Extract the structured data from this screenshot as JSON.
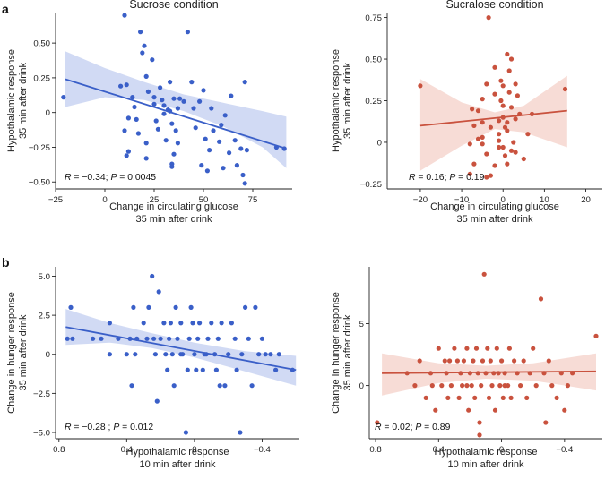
{
  "figure": {
    "panel_letters": [
      "a",
      "b"
    ]
  },
  "chart_data": [
    {
      "type": "scatter",
      "title": "Sucrose condition",
      "xlabel": [
        "Change in circulating glucose",
        "35 min after drink"
      ],
      "ylabel": [
        "Hypothalamic response",
        "35 min after drink"
      ],
      "xlim": [
        -25,
        95
      ],
      "ylim": [
        -0.55,
        0.72
      ],
      "xticks": [
        -25,
        0,
        25,
        50,
        75
      ],
      "xtick_labels": [
        "−25",
        "0",
        "25",
        "50",
        "75"
      ],
      "yticks": [
        -0.5,
        -0.25,
        0,
        0.25,
        0.5
      ],
      "ytick_labels": [
        "−0.50",
        "−0.25",
        "0",
        "0.25",
        "0.50"
      ],
      "color": "#3a5fc8",
      "band_color": "#c9d4f2",
      "stat": {
        "r_label": "R",
        "r_value": " = −0.34; ",
        "p_label": "P",
        "p_value": " = 0.0045"
      },
      "fit": {
        "x": [
          -20,
          92
        ],
        "y": [
          0.24,
          -0.26
        ]
      },
      "band": {
        "x": [
          -20,
          0,
          20,
          40,
          60,
          80,
          92
        ],
        "upper": [
          0.44,
          0.32,
          0.22,
          0.13,
          0.07,
          0.01,
          -0.03
        ],
        "lower": [
          0.04,
          0.11,
          0.09,
          0.01,
          -0.1,
          -0.25,
          -0.4
        ]
      },
      "points": [
        [
          -21,
          0.11
        ],
        [
          8,
          0.19
        ],
        [
          10,
          0.7
        ],
        [
          11,
          0.2
        ],
        [
          12,
          -0.04
        ],
        [
          10,
          -0.13
        ],
        [
          11,
          -0.31
        ],
        [
          12,
          -0.28
        ],
        [
          14,
          0.11
        ],
        [
          15,
          0.04
        ],
        [
          16,
          -0.05
        ],
        [
          17,
          -0.15
        ],
        [
          18,
          0.58
        ],
        [
          19,
          0.43
        ],
        [
          20,
          0.48
        ],
        [
          21,
          0.26
        ],
        [
          21,
          -0.22
        ],
        [
          21,
          -0.33
        ],
        [
          22,
          0.15
        ],
        [
          24,
          0.38
        ],
        [
          25,
          0.11
        ],
        [
          25,
          0.06
        ],
        [
          26,
          -0.06
        ],
        [
          27,
          -0.12
        ],
        [
          28,
          0.18
        ],
        [
          29,
          0.09
        ],
        [
          30,
          0.05
        ],
        [
          30,
          -0.01
        ],
        [
          31,
          -0.2
        ],
        [
          32,
          0.02
        ],
        [
          33,
          0.22
        ],
        [
          33,
          0.01
        ],
        [
          34,
          -0.08
        ],
        [
          34,
          -0.37
        ],
        [
          34,
          -0.39
        ],
        [
          35,
          0.1
        ],
        [
          35,
          -0.3
        ],
        [
          36,
          -0.13
        ],
        [
          37,
          -0.22
        ],
        [
          37,
          0.03
        ],
        [
          38,
          0.1
        ],
        [
          40,
          0.08
        ],
        [
          42,
          0.58
        ],
        [
          44,
          0.22
        ],
        [
          45,
          0.03
        ],
        [
          46,
          -0.11
        ],
        [
          48,
          0.08
        ],
        [
          49,
          -0.38
        ],
        [
          50,
          0.16
        ],
        [
          51,
          -0.19
        ],
        [
          52,
          -0.42
        ],
        [
          53,
          -0.27
        ],
        [
          54,
          0.03
        ],
        [
          55,
          -0.13
        ],
        [
          58,
          -0.21
        ],
        [
          59,
          -0.09
        ],
        [
          60,
          -0.4
        ],
        [
          61,
          -0.02
        ],
        [
          63,
          -0.29
        ],
        [
          64,
          0.12
        ],
        [
          66,
          -0.2
        ],
        [
          67,
          -0.38
        ],
        [
          69,
          -0.26
        ],
        [
          70,
          -0.45
        ],
        [
          71,
          0.22
        ],
        [
          71,
          -0.51
        ],
        [
          72,
          -0.27
        ],
        [
          87,
          -0.25
        ],
        [
          91,
          -0.26
        ]
      ]
    },
    {
      "type": "scatter",
      "title": "Sucralose condition",
      "xlabel": [
        "Change in circulating glucose",
        "35 min after drink"
      ],
      "ylabel": [
        "Hypothalamic response",
        "35 min after drink"
      ],
      "xlim": [
        -28,
        24
      ],
      "ylim": [
        -0.28,
        0.78
      ],
      "xticks": [
        -20,
        -10,
        0,
        10,
        20
      ],
      "xtick_labels": [
        "−20",
        "−10",
        "0",
        "10",
        "20"
      ],
      "yticks": [
        -0.25,
        0,
        0.25,
        0.5,
        0.75
      ],
      "ytick_labels": [
        "−0.25",
        "0",
        "0.25",
        "0.50",
        "0.75"
      ],
      "color": "#c9523e",
      "band_color": "#f6d6cf",
      "stat": {
        "r_label": "R",
        "r_value": " = 0.16; ",
        "p_label": "P",
        "p_value": " = 0.19"
      },
      "fit": {
        "x": [
          -20,
          15.5
        ],
        "y": [
          0.1,
          0.19
        ]
      },
      "band": {
        "x": [
          -20,
          -10,
          -2,
          5,
          15.5
        ],
        "upper": [
          0.38,
          0.24,
          0.18,
          0.22,
          0.4
        ],
        "lower": [
          -0.17,
          -0.02,
          0.08,
          0.06,
          -0.03
        ]
      },
      "points": [
        [
          -20,
          0.34
        ],
        [
          -8,
          -0.19
        ],
        [
          -7,
          -0.13
        ],
        [
          -7,
          0.1
        ],
        [
          -6,
          0.02
        ],
        [
          -6,
          0.19
        ],
        [
          -5,
          0.26
        ],
        [
          -5,
          0.12
        ],
        [
          -5,
          -0.01
        ],
        [
          -4,
          -0.07
        ],
        [
          -4,
          0.35
        ],
        [
          -3,
          0.09
        ],
        [
          -3,
          -0.2
        ],
        [
          -2,
          -0.14
        ],
        [
          -2,
          0.45
        ],
        [
          -2,
          0.29
        ],
        [
          -1,
          0.05
        ],
        [
          -1,
          0.13
        ],
        [
          -1,
          0.01
        ],
        [
          -1,
          -0.03
        ],
        [
          -0.5,
          0.25
        ],
        [
          -0.5,
          0.37
        ],
        [
          0,
          0.34
        ],
        [
          0,
          0.22
        ],
        [
          0,
          0.15
        ],
        [
          0,
          -0.03
        ],
        [
          0.5,
          0.09
        ],
        [
          0.5,
          -0.08
        ],
        [
          1,
          0.53
        ],
        [
          1,
          0.12
        ],
        [
          1,
          0.07
        ],
        [
          1,
          -0.13
        ],
        [
          1.5,
          0.3
        ],
        [
          1.5,
          0.43
        ],
        [
          2,
          0.5
        ],
        [
          2,
          0.21
        ],
        [
          2,
          -0.05
        ],
        [
          2.5,
          0.0
        ],
        [
          3,
          0.35
        ],
        [
          3,
          0.14
        ],
        [
          3,
          -0.06
        ],
        [
          3.5,
          0.28
        ],
        [
          4,
          0.17
        ],
        [
          -3.5,
          0.75
        ],
        [
          -4,
          -0.21
        ],
        [
          -5,
          0.03
        ],
        [
          5,
          -0.1
        ],
        [
          6,
          0.05
        ],
        [
          7,
          0.17
        ],
        [
          -8,
          -0.01
        ],
        [
          -7.5,
          0.2
        ],
        [
          15,
          0.32
        ]
      ]
    },
    {
      "type": "scatter",
      "title": "",
      "xlabel": [
        "Hypothalamic response",
        "10 min after drink"
      ],
      "ylabel": [
        "Change in hunger response",
        "35 min after drink"
      ],
      "xlim": [
        0.82,
        -0.62
      ],
      "ylim": [
        -5.4,
        5.6
      ],
      "xticks": [
        0.8,
        0.4,
        0,
        -0.4
      ],
      "xtick_labels": [
        "0.8",
        "0.4",
        "0",
        "−0.4"
      ],
      "yticks": [
        -5,
        -2.5,
        0,
        2.5,
        5
      ],
      "ytick_labels": [
        "−5.0",
        "−2.5",
        "0",
        "2.5",
        "5.0"
      ],
      "color": "#3a5fc8",
      "band_color": "#c9d4f2",
      "stat": {
        "r_label": "R",
        "r_value": " = −0.28 ; ",
        "p_label": "P",
        "p_value": " = 0.012"
      },
      "fit": {
        "x": [
          0.76,
          -0.6
        ],
        "y": [
          1.75,
          -1.0
        ]
      },
      "band": {
        "x": [
          0.76,
          0.5,
          0.25,
          0,
          -0.3,
          -0.6
        ],
        "upper": [
          2.9,
          2.0,
          1.35,
          0.75,
          0.2,
          -0.1
        ],
        "lower": [
          0.6,
          0.75,
          0.4,
          -0.2,
          -1.1,
          -2.0
        ]
      },
      "points": [
        [
          0.75,
          1
        ],
        [
          0.73,
          3
        ],
        [
          0.72,
          1
        ],
        [
          0.6,
          1
        ],
        [
          0.55,
          1
        ],
        [
          0.5,
          0
        ],
        [
          0.5,
          2
        ],
        [
          0.45,
          1
        ],
        [
          0.4,
          0
        ],
        [
          0.38,
          1
        ],
        [
          0.37,
          -2
        ],
        [
          0.36,
          3
        ],
        [
          0.35,
          0
        ],
        [
          0.34,
          1
        ],
        [
          0.3,
          2
        ],
        [
          0.28,
          1
        ],
        [
          0.27,
          3
        ],
        [
          0.25,
          5
        ],
        [
          0.24,
          1
        ],
        [
          0.23,
          0
        ],
        [
          0.22,
          -3
        ],
        [
          0.21,
          4
        ],
        [
          0.2,
          1
        ],
        [
          0.18,
          2
        ],
        [
          0.17,
          0
        ],
        [
          0.16,
          -1
        ],
        [
          0.15,
          1
        ],
        [
          0.14,
          2
        ],
        [
          0.13,
          0
        ],
        [
          0.12,
          -2
        ],
        [
          0.11,
          3
        ],
        [
          0.1,
          1
        ],
        [
          0.08,
          2
        ],
        [
          0.07,
          0
        ],
        [
          0.05,
          -5
        ],
        [
          0.04,
          -1
        ],
        [
          0.03,
          1
        ],
        [
          0.02,
          3
        ],
        [
          0.01,
          2
        ],
        [
          0,
          0
        ],
        [
          -0.01,
          -1
        ],
        [
          -0.02,
          1
        ],
        [
          -0.03,
          2
        ],
        [
          -0.05,
          -1
        ],
        [
          -0.07,
          0
        ],
        [
          -0.08,
          1
        ],
        [
          -0.1,
          2
        ],
        [
          -0.12,
          0
        ],
        [
          -0.13,
          -1
        ],
        [
          -0.14,
          1
        ],
        [
          -0.15,
          -2
        ],
        [
          -0.16,
          2
        ],
        [
          -0.18,
          -2
        ],
        [
          -0.2,
          0
        ],
        [
          -0.22,
          2
        ],
        [
          -0.24,
          1
        ],
        [
          -0.25,
          -1
        ],
        [
          -0.27,
          -5
        ],
        [
          -0.28,
          0
        ],
        [
          -0.3,
          3
        ],
        [
          -0.32,
          1
        ],
        [
          -0.34,
          -2
        ],
        [
          -0.36,
          3
        ],
        [
          -0.38,
          0
        ],
        [
          -0.4,
          1
        ],
        [
          -0.42,
          0
        ],
        [
          -0.45,
          0
        ],
        [
          -0.48,
          -1
        ],
        [
          -0.5,
          0
        ],
        [
          -0.58,
          -1
        ],
        [
          0.08,
          0
        ],
        [
          -0.06,
          0
        ]
      ]
    },
    {
      "type": "scatter",
      "title": "",
      "xlabel": [
        "Hypothalamic response",
        "10 min after drink"
      ],
      "ylabel": [
        "Change in hunger response",
        "35 min after drink"
      ],
      "xlim": [
        0.84,
        -0.64
      ],
      "ylim": [
        -4.3,
        9.6
      ],
      "xticks": [
        0.8,
        0.4,
        0,
        -0.4
      ],
      "xtick_labels": [
        "0.8",
        "0.4",
        "0",
        "−0.4"
      ],
      "yticks": [
        0,
        5
      ],
      "ytick_labels": [
        "0",
        "5"
      ],
      "color": "#c9523e",
      "band_color": "#f6d6cf",
      "stat": {
        "r_label": "R",
        "r_value": " = 0.02; ",
        "p_label": "P",
        "p_value": " = 0.89"
      },
      "fit": {
        "x": [
          0.76,
          -0.6
        ],
        "y": [
          1.0,
          1.15
        ]
      },
      "band": {
        "x": [
          0.76,
          0.4,
          0.1,
          -0.2,
          -0.6
        ],
        "upper": [
          2.6,
          1.8,
          1.6,
          1.8,
          2.6
        ],
        "lower": [
          -0.8,
          0.2,
          0.55,
          0.4,
          -0.4
        ]
      },
      "points": [
        [
          0.79,
          -3
        ],
        [
          0.6,
          1
        ],
        [
          0.55,
          0
        ],
        [
          0.52,
          2
        ],
        [
          0.48,
          -1
        ],
        [
          0.45,
          1
        ],
        [
          0.44,
          0
        ],
        [
          0.42,
          -2
        ],
        [
          0.4,
          3
        ],
        [
          0.38,
          0
        ],
        [
          0.36,
          2
        ],
        [
          0.35,
          1
        ],
        [
          0.34,
          -1
        ],
        [
          0.32,
          0
        ],
        [
          0.3,
          3
        ],
        [
          0.28,
          2
        ],
        [
          0.27,
          -1
        ],
        [
          0.26,
          1
        ],
        [
          0.25,
          0
        ],
        [
          0.24,
          2
        ],
        [
          0.22,
          3
        ],
        [
          0.21,
          -2
        ],
        [
          0.2,
          1
        ],
        [
          0.19,
          0
        ],
        [
          0.18,
          2
        ],
        [
          0.17,
          -1
        ],
        [
          0.16,
          3
        ],
        [
          0.15,
          1
        ],
        [
          0.14,
          -3
        ],
        [
          0.13,
          0
        ],
        [
          0.12,
          2
        ],
        [
          0.11,
          9
        ],
        [
          0.1,
          1
        ],
        [
          0.09,
          3
        ],
        [
          0.08,
          -1
        ],
        [
          0.07,
          2
        ],
        [
          0.06,
          0
        ],
        [
          0.05,
          1
        ],
        [
          0.04,
          -2
        ],
        [
          0.03,
          3
        ],
        [
          0.02,
          1
        ],
        [
          0.01,
          0
        ],
        [
          0,
          2
        ],
        [
          -0.01,
          -1
        ],
        [
          -0.02,
          1
        ],
        [
          -0.04,
          0
        ],
        [
          -0.05,
          3
        ],
        [
          -0.06,
          -1
        ],
        [
          -0.08,
          2
        ],
        [
          -0.1,
          1
        ],
        [
          -0.12,
          0
        ],
        [
          -0.14,
          2
        ],
        [
          -0.16,
          -1
        ],
        [
          -0.18,
          1
        ],
        [
          -0.2,
          3
        ],
        [
          -0.22,
          0
        ],
        [
          -0.25,
          7
        ],
        [
          -0.27,
          1
        ],
        [
          -0.28,
          -3
        ],
        [
          -0.3,
          2
        ],
        [
          -0.32,
          0
        ],
        [
          -0.35,
          -1
        ],
        [
          -0.38,
          1
        ],
        [
          -0.4,
          -2
        ],
        [
          -0.42,
          0
        ],
        [
          -0.45,
          1
        ],
        [
          -0.6,
          4
        ],
        [
          0.14,
          -4
        ],
        [
          -0.02,
          0
        ],
        [
          0.22,
          0
        ],
        [
          0.33,
          2
        ]
      ]
    }
  ]
}
